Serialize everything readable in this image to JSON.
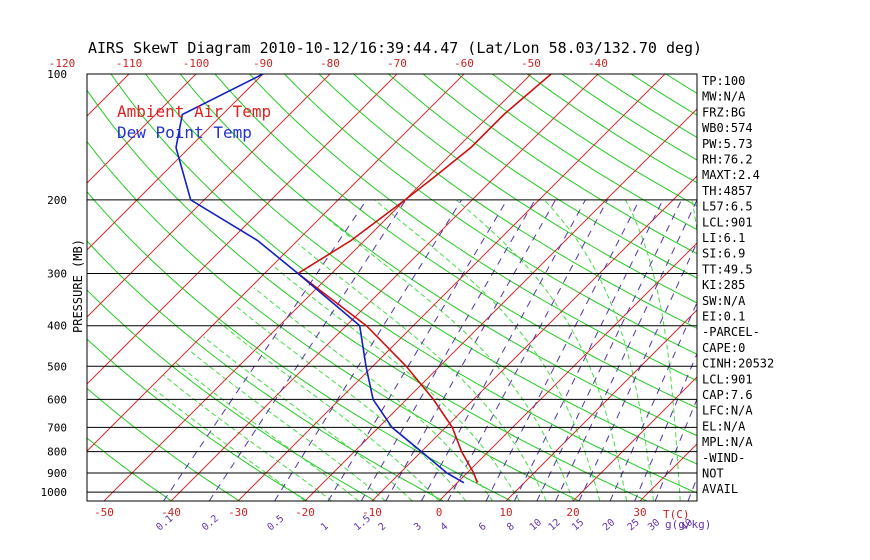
{
  "chart_data": {
    "type": "line",
    "title": "AIRS SkewT Diagram 2010-10-12/16:39:44.47 (Lat/Lon 58.03/132.70 deg)",
    "ylabel": "PRESSURE (MB)",
    "x_unit_label": "T(C)",
    "mixing_ratio_label": "g(g/kg)",
    "pressure_levels": [
      100,
      200,
      300,
      400,
      500,
      600,
      700,
      800,
      900,
      1000
    ],
    "top_temp_ticks": [
      -120,
      -110,
      -100,
      -90,
      -80,
      -70,
      -60,
      -50,
      -40
    ],
    "bottom_temp_ticks": [
      -50,
      -40,
      -30,
      -20,
      -10,
      0,
      10,
      20,
      30
    ],
    "mixing_ratio_ticks": [
      "0.1",
      "0.2",
      "0.5",
      "1",
      "1.5",
      "2",
      "3",
      "4",
      "6",
      "8",
      "10",
      "12",
      "15",
      "20",
      "25",
      "30",
      "40"
    ],
    "legend": [
      {
        "name": "Ambient Air Temp",
        "color": "#dd2222"
      },
      {
        "name": "Dew Point Temp",
        "color": "#2233cc"
      }
    ],
    "series": [
      {
        "name": "Ambient Air Temp",
        "color": "#cc1111",
        "pressure": [
          950,
          900,
          800,
          700,
          600,
          500,
          400,
          300,
          250,
          200,
          175,
          150,
          125,
          100
        ],
        "temperature": [
          3,
          1,
          -4,
          -9,
          -16,
          -25,
          -37,
          -55,
          -52,
          -50,
          -49,
          -48,
          -48,
          -47
        ]
      },
      {
        "name": "Dew Point Temp",
        "color": "#1122bb",
        "pressure": [
          950,
          900,
          800,
          700,
          600,
          500,
          400,
          300,
          250,
          200,
          150,
          125,
          100
        ],
        "temperature": [
          1,
          -3,
          -10,
          -18,
          -25,
          -31,
          -38,
          -55,
          -66,
          -82,
          -92,
          -96,
          -90
        ]
      }
    ]
  },
  "side_panel": [
    "TP:100",
    "MW:N/A",
    "FRZ:BG",
    "WB0:574",
    "PW:5.73",
    "RH:76.2",
    "MAXT:2.4",
    "TH:4857",
    "L57:6.5",
    "LCL:901",
    "LI:6.1",
    "SI:6.9",
    "TT:49.5",
    "KI:285",
    "SW:N/A",
    "EI:0.1",
    "-PARCEL-",
    "CAPE:0",
    "CINH:20532",
    "LCL:901",
    "CAP:7.6",
    "LFC:N/A",
    "EL:N/A",
    "MPL:N/A",
    "-WIND-",
    " NOT",
    "AVAIL"
  ],
  "colors": {
    "isotherm": "#cc3333",
    "dry_adiabat": "#22cc22",
    "moist_adiabat": "#44dd44",
    "mixing_ratio": "#5533aa",
    "isobar": "#000000",
    "tick_red": "#cc2222",
    "tick_purple": "#6633aa"
  }
}
